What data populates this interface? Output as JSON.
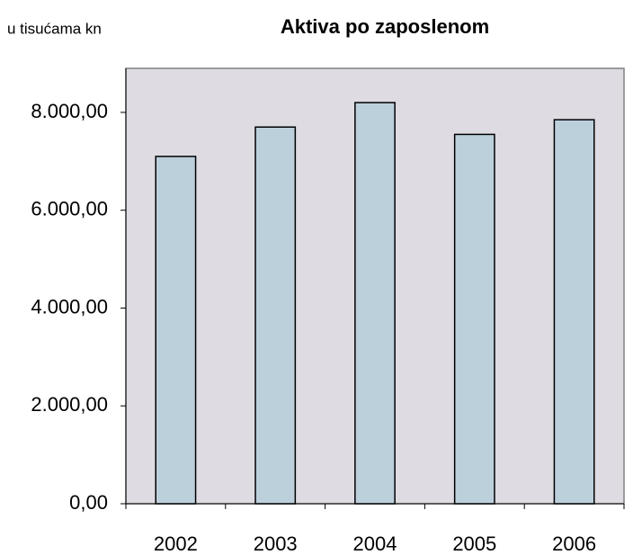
{
  "chart_data": {
    "type": "bar",
    "title": "Aktiva po zaposlenom",
    "subtitle": "u tisućama kn",
    "categories": [
      "2002",
      "2003",
      "2004",
      "2005",
      "2006"
    ],
    "values": [
      7100,
      7700,
      8200,
      7550,
      7850
    ],
    "color": "#bcd0dc",
    "ylim": [
      0,
      8900
    ],
    "yticks": [
      {
        "value": 0,
        "label": "0,00"
      },
      {
        "value": 2000,
        "label": "2.000,00"
      },
      {
        "value": 4000,
        "label": "4.000,00"
      },
      {
        "value": 6000,
        "label": "6.000,00"
      },
      {
        "value": 8000,
        "label": "8.000,00"
      }
    ],
    "grid": false
  }
}
